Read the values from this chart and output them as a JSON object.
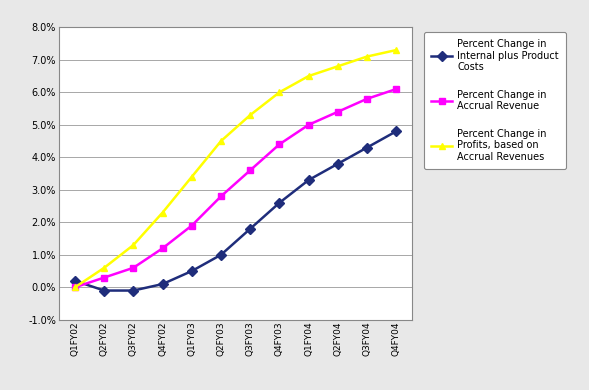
{
  "categories": [
    "Q1FY02",
    "Q2FY02",
    "Q3FY02",
    "Q4FY02",
    "Q1FY03",
    "Q2FY03",
    "Q3FY03",
    "Q4FY03",
    "Q1FY04",
    "Q2FY04",
    "Q3FY04",
    "Q4FY04"
  ],
  "series": {
    "internal": [
      0.002,
      -0.001,
      -0.001,
      0.001,
      0.005,
      0.01,
      0.018,
      0.026,
      0.033,
      0.038,
      0.043,
      0.048
    ],
    "accrual": [
      0.0,
      0.003,
      0.006,
      0.012,
      0.019,
      0.028,
      0.036,
      0.044,
      0.05,
      0.054,
      0.058,
      0.061
    ],
    "profits": [
      0.0,
      0.006,
      0.013,
      0.023,
      0.034,
      0.045,
      0.053,
      0.06,
      0.065,
      0.068,
      0.071,
      0.073
    ]
  },
  "colors": {
    "internal": "#1F2D7B",
    "accrual": "#FF00FF",
    "profits": "#FFFF00"
  },
  "markers": {
    "internal": "D",
    "accrual": "s",
    "profits": "^"
  },
  "legend": {
    "internal": "Percent Change in\nInternal plus Product\nCosts",
    "accrual": "Percent Change in\nAccrual Revenue",
    "profits": "Percent Change in\nProfits, based on\nAccrual Revenues"
  },
  "ylim": [
    -0.01,
    0.08
  ],
  "yticks": [
    -0.01,
    0.0,
    0.01,
    0.02,
    0.03,
    0.04,
    0.05,
    0.06,
    0.07,
    0.08
  ],
  "background_color": "#E8E8E8",
  "plot_bg": "#FFFFFF",
  "grid_color": "#999999",
  "border_color": "#888888"
}
